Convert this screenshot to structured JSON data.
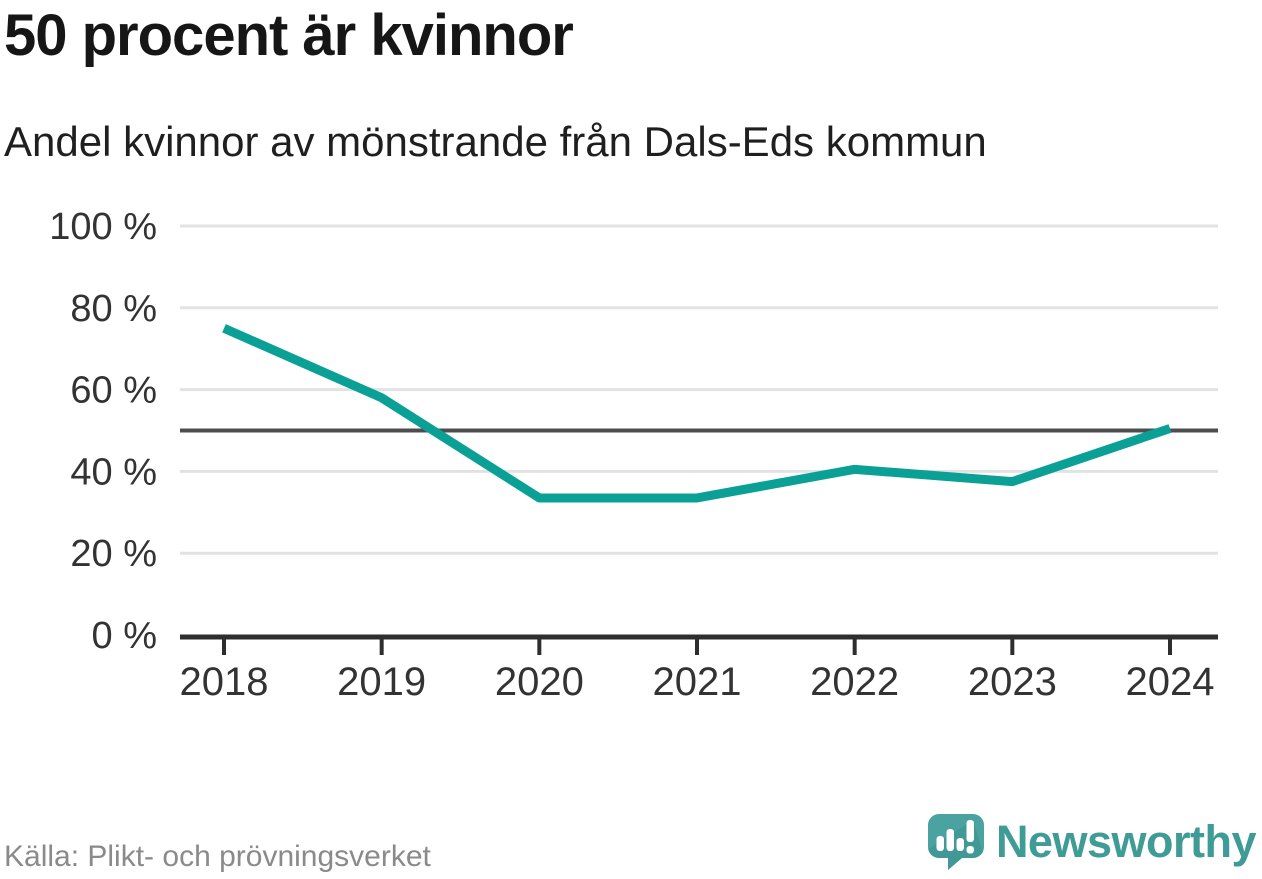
{
  "chart_data": {
    "type": "line",
    "title": "50 procent är kvinnor",
    "subtitle": "Andel kvinnor av mönstrande från Dals-Eds kommun",
    "categories": [
      "2018",
      "2019",
      "2020",
      "2021",
      "2022",
      "2023",
      "2024"
    ],
    "values": [
      75,
      58,
      33.5,
      33.5,
      40.5,
      37.5,
      50.5
    ],
    "unit": "%",
    "ylim": [
      0,
      100
    ],
    "yticks": [
      0,
      20,
      40,
      60,
      80,
      100
    ],
    "ytick_suffix": " %",
    "reference_line": {
      "value": 50
    },
    "grid": "horizontal",
    "legend": "none"
  },
  "footer": {
    "source": "Källa: Plikt- och prövningsverket",
    "brand": {
      "name": "Newsworthy",
      "icon": "newsworthy-speech-bubble-barchart-icon"
    }
  },
  "colors": {
    "line": "#0aa096",
    "reference_line": "#4d4d4d",
    "gridline": "#e2e2e2",
    "axis": "#2e2e2e",
    "tick_label": "#333333",
    "title": "#161616",
    "subtitle": "#1f1f1f",
    "source_text": "#8a8a8a",
    "brand_teal": "#3e9b96",
    "logo_mark": "#4aa2a1",
    "logo_mark_shade": "#38908f",
    "background": "#ffffff"
  }
}
